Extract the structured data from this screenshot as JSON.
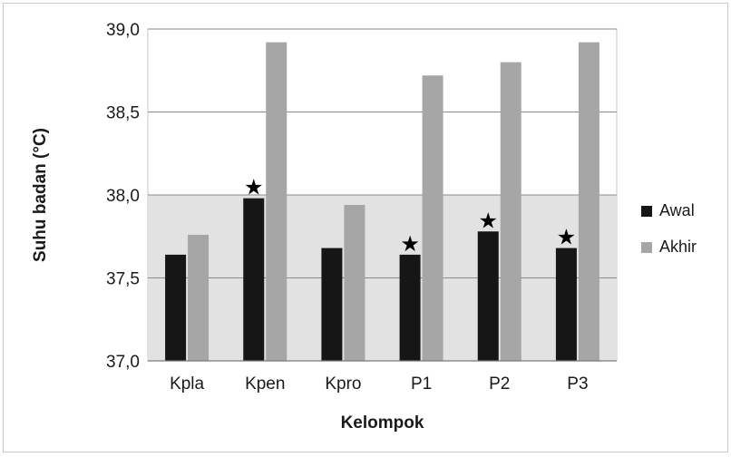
{
  "chart_data": {
    "type": "bar",
    "xlabel": "Kelompok",
    "ylabel": "Suhu badan (°C)",
    "categories": [
      "Kpla",
      "Kpen",
      "Kpro",
      "P1",
      "P2",
      "P3"
    ],
    "series": [
      {
        "name": "Awal",
        "color": "#161616",
        "values": [
          37.64,
          37.98,
          37.68,
          37.64,
          37.78,
          37.68
        ]
      },
      {
        "name": "Akhir",
        "color": "#a6a6a6",
        "values": [
          37.76,
          38.92,
          37.94,
          38.72,
          38.8,
          38.92
        ]
      }
    ],
    "ylim": [
      37.0,
      39.0
    ],
    "yticks": [
      37.0,
      37.5,
      38.0,
      38.5,
      39.0
    ],
    "ytick_labels": [
      "37,0",
      "37,5",
      "38,0",
      "38,5",
      "39,0"
    ],
    "shaded_band": {
      "from": 37.0,
      "to": 38.0,
      "color": "#e2e2e2"
    },
    "annotations": [
      {
        "category": "Kpen",
        "series": "Awal",
        "symbol": "★"
      },
      {
        "category": "P1",
        "series": "Awal",
        "symbol": "★"
      },
      {
        "category": "P2",
        "series": "Awal",
        "symbol": "★"
      },
      {
        "category": "P3",
        "series": "Awal",
        "symbol": "★"
      }
    ],
    "grid": true,
    "legend_position": "right"
  }
}
